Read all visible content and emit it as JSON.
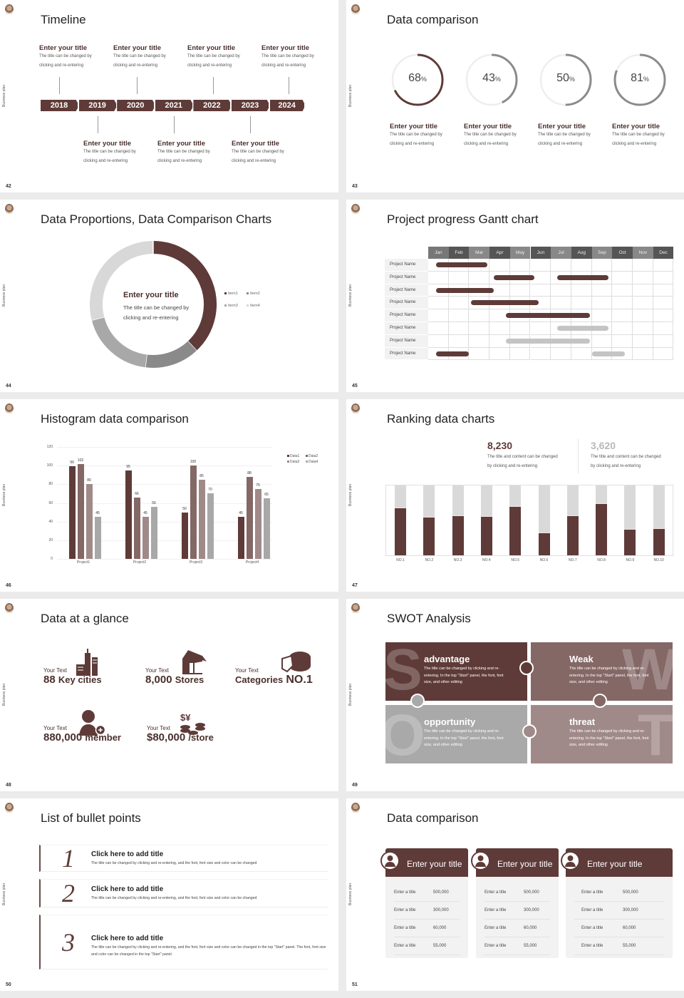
{
  "side_label": "Business plan",
  "colors": {
    "brown": "#5e3b38",
    "mauve": "#8a6a68",
    "rose": "#a89090",
    "gray": "#a8a8a8",
    "light": "#d8d8d8"
  },
  "slide42": {
    "page": "42",
    "title": "Timeline",
    "years": [
      "2018",
      "2019",
      "2020",
      "2021",
      "2022",
      "2023",
      "2024"
    ],
    "top_items": [
      {
        "title": "Enter your title",
        "desc1": "The title can be changed by",
        "desc2": "clicking and re-entering"
      },
      {
        "title": "Enter your title",
        "desc1": "The title can be changed by",
        "desc2": "clicking and re-entering"
      },
      {
        "title": "Enter your title",
        "desc1": "The title can be changed by",
        "desc2": "clicking and re-entering"
      },
      {
        "title": "Enter your title",
        "desc1": "The title can be changed by",
        "desc2": "clicking and re-entering"
      }
    ],
    "bottom_items": [
      {
        "title": "Enter your title",
        "desc1": "The title can be changed by",
        "desc2": "clicking and re-entering"
      },
      {
        "title": "Enter your title",
        "desc1": "The title can be changed by",
        "desc2": "clicking and re-entering"
      },
      {
        "title": "Enter your title",
        "desc1": "The title can be changed by",
        "desc2": "clicking and re-entering"
      }
    ]
  },
  "slide43": {
    "page": "43",
    "title": "Data comparison",
    "rings": [
      {
        "value": 68,
        "num": "68",
        "unit": "%",
        "title": "Enter your title",
        "desc1": "The title can be changed by",
        "desc2": "clicking and re-entering",
        "color": "#5e3b38"
      },
      {
        "value": 43,
        "num": "43",
        "unit": "%",
        "title": "Enter your title",
        "desc1": "The title can be changed by",
        "desc2": "clicking and re-entering",
        "color": "#8a8a8a"
      },
      {
        "value": 50,
        "num": "50",
        "unit": "%",
        "title": "Enter your title",
        "desc1": "The title can be changed by",
        "desc2": "clicking and re-entering",
        "color": "#8a8a8a"
      },
      {
        "value": 81,
        "num": "81",
        "unit": "%",
        "title": "Enter your title",
        "desc1": "The title can be changed by",
        "desc2": "clicking and re-entering",
        "color": "#8a8a8a"
      }
    ]
  },
  "slide44": {
    "page": "44",
    "title": "Data Proportions, Data Comparison Charts",
    "center_title": "Enter your title",
    "center_desc1": "The title can be changed by",
    "center_desc2": "clicking and re-entering"
  },
  "slide45": {
    "page": "45",
    "title": "Project progress Gantt chart",
    "months": [
      "Jan",
      "Feb",
      "Mar",
      "Apr",
      "May",
      "Jun",
      "Jul",
      "Aug",
      "Sep",
      "Oct",
      "Nov",
      "Dec"
    ],
    "rows": [
      {
        "name": "Project Name",
        "bars": [
          {
            "start": 0.4,
            "end": 2.9,
            "status": "active"
          }
        ]
      },
      {
        "name": "Project Name",
        "bars": [
          {
            "start": 3.2,
            "end": 5.2,
            "status": "active"
          },
          {
            "start": 6.3,
            "end": 8.8,
            "status": "active"
          }
        ]
      },
      {
        "name": "Project Name",
        "bars": [
          {
            "start": 0.4,
            "end": 3.2,
            "status": "active"
          }
        ]
      },
      {
        "name": "Project Name",
        "bars": [
          {
            "start": 2.1,
            "end": 5.4,
            "status": "active"
          }
        ]
      },
      {
        "name": "Project Name",
        "bars": [
          {
            "start": 3.8,
            "end": 7.9,
            "status": "active"
          }
        ]
      },
      {
        "name": "Project Name",
        "bars": [
          {
            "start": 6.3,
            "end": 8.8,
            "status": "planned"
          }
        ]
      },
      {
        "name": "Project Name",
        "bars": [
          {
            "start": 3.8,
            "end": 7.9,
            "status": "planned"
          }
        ]
      },
      {
        "name": "Project Name",
        "bars": [
          {
            "start": 0.4,
            "end": 2.0,
            "status": "active"
          },
          {
            "start": 8.0,
            "end": 9.6,
            "status": "planned"
          }
        ]
      }
    ]
  },
  "slide46": {
    "page": "46",
    "title": "Histogram data comparison"
  },
  "slide47": {
    "page": "47",
    "title": "Ranking data charts",
    "stats": [
      {
        "value": "8,230",
        "desc1": "The title and content can be changed",
        "desc2": "by clicking and re-entering"
      },
      {
        "value": "3,620",
        "desc1": "The title and content can be changed",
        "desc2": "by clicking and re-entering"
      }
    ]
  },
  "slide48": {
    "page": "48",
    "title": "Data at a glance",
    "items": [
      {
        "small": "Your Text",
        "num": "88",
        "unit": "Key cities",
        "icon": "city-buildings-icon"
      },
      {
        "small": "Your Text",
        "num": "8,000",
        "unit": "Stores",
        "icon": "store-icon"
      },
      {
        "small": "Your Text",
        "pre": "Categories",
        "num": "NO.1",
        "icon": "pie-chart-icon"
      },
      {
        "small": "Your Text",
        "num": "880,000",
        "unit": "member",
        "icon": "add-member-icon"
      },
      {
        "small": "Your Text",
        "num": "$80,000",
        "unit": "/store",
        "icon": "coins-icon"
      }
    ]
  },
  "slide49": {
    "page": "49",
    "title": "SWOT Analysis",
    "quadrants": [
      {
        "letter": "S",
        "title": "advantage",
        "desc": "The title can be changed by clicking and re-entering. In the top \"Start\" panel, the font, font size, and other editing",
        "color": "#5e3b38"
      },
      {
        "letter": "W",
        "title": "Weak",
        "desc": "The title can be changed by clicking and re-entering. In the top \"Start\" panel, the font, font size, and other editing",
        "color": "#846866"
      },
      {
        "letter": "O",
        "title": "opportunity",
        "desc": "The title can be changed by clicking and re-entering. In the top \"Start\" panel, the font, font size, and other editing",
        "color": "#a9a9a9"
      },
      {
        "letter": "T",
        "title": "threat",
        "desc": "The title can be changed by clicking and re-entering. In the top \"Start\" panel, the font, font size, and other editing",
        "color": "#a08a89"
      }
    ]
  },
  "slide50": {
    "page": "50",
    "title": "List of bullet points",
    "items": [
      {
        "num": "1",
        "title": "Click here to add title",
        "desc": "The title can be changed by clicking and re-entering, and the font, font size and color can be changed"
      },
      {
        "num": "2",
        "title": "Click here to add title",
        "desc": "The title can be changed by clicking and re-entering, and the font, font size and color can be changed"
      },
      {
        "num": "3",
        "title": "Click here to add title",
        "desc": "The title can be changed by clicking and re-entering, and the font, font size and color can be changed in the top \"Start\" panel. The font, font size and color can be changed in the top \"Start\" panel."
      }
    ]
  },
  "slide51": {
    "page": "51",
    "title": "Data comparison",
    "cards": [
      {
        "title": "Enter your title",
        "icon": "tablet-user-icon",
        "rows": [
          [
            "Enter a title",
            "500,000"
          ],
          [
            "Enter a title",
            "300,000"
          ],
          [
            "Enter a title",
            "60,000"
          ],
          [
            "Enter a title",
            "55,000"
          ]
        ]
      },
      {
        "title": "Enter your title",
        "icon": "user-settings-icon",
        "rows": [
          [
            "Enter a title",
            "500,000"
          ],
          [
            "Enter a title",
            "300,000"
          ],
          [
            "Enter a title",
            "60,000"
          ],
          [
            "Enter a title",
            "55,000"
          ]
        ]
      },
      {
        "title": "Enter your title",
        "icon": "user-group-icon",
        "rows": [
          [
            "Enter a title",
            "500,000"
          ],
          [
            "Enter a title",
            "300,000"
          ],
          [
            "Enter a title",
            "60,000"
          ],
          [
            "Enter a title",
            "55,000"
          ]
        ]
      }
    ]
  },
  "chart_data": [
    {
      "type": "pie",
      "variant": "donut",
      "categories": [
        "Item1",
        "Item2",
        "Item3",
        "Item4"
      ],
      "values": [
        38,
        14,
        19,
        29
      ],
      "colors": [
        "#5e3b38",
        "#8a8a8a",
        "#a8a8a8",
        "#d8d8d8"
      ],
      "legend": "right"
    },
    {
      "type": "bar",
      "categories": [
        "Project1",
        "Project2",
        "Project3",
        "Project4"
      ],
      "series": [
        {
          "name": "Data1",
          "values": [
            99,
            95,
            50,
            45
          ],
          "color": "#5e3b38"
        },
        {
          "name": "Data2",
          "values": [
            102,
            66,
            100,
            88
          ],
          "color": "#846866"
        },
        {
          "name": "Data3",
          "values": [
            80,
            45,
            85,
            75
          ],
          "color": "#a08a89"
        },
        {
          "name": "Data4",
          "values": [
            45,
            56,
            70,
            65
          ],
          "color": "#a8a8a8"
        }
      ],
      "yticks": [
        "0",
        "20",
        "40",
        "60",
        "80",
        "100",
        "120"
      ],
      "ylim": [
        0,
        120
      ],
      "grid": true,
      "legend": "top-right"
    },
    {
      "type": "bar",
      "stacked": true,
      "categories": [
        "NO.1",
        "NO.2",
        "NO.3",
        "NO.4",
        "NO.5",
        "NO.6",
        "NO.7",
        "NO.8",
        "NO.9",
        "NO.10"
      ],
      "values": [
        68,
        55,
        57,
        56,
        70,
        33,
        57,
        75,
        38,
        39
      ],
      "ylim": [
        0,
        100
      ]
    }
  ]
}
